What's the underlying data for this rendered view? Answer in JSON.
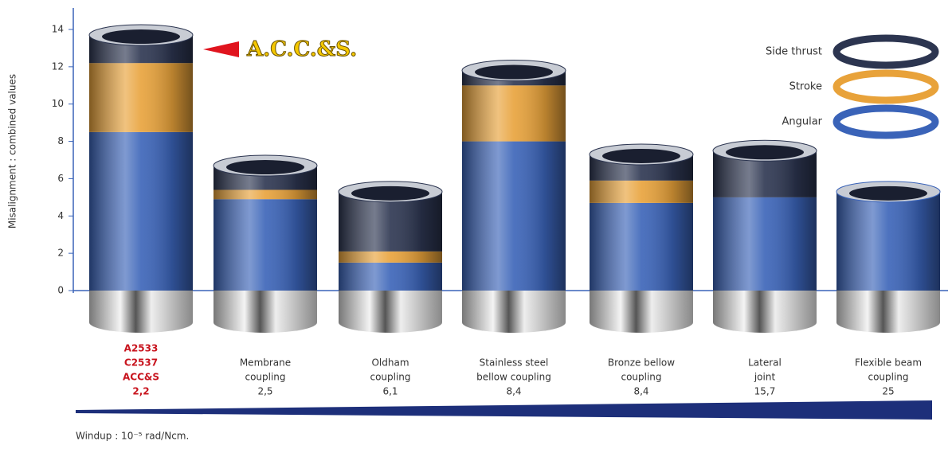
{
  "chart_data": {
    "type": "stacked_bar",
    "y_label": "Misalignment : combined values",
    "x_note": "Windup : 10⁻⁵ rad/Ncm.",
    "annotation": "A.C.C.&S.",
    "categories": [
      [
        "A2533",
        "C2537",
        "ACC&S"
      ],
      [
        "Membrane",
        "coupling"
      ],
      [
        "Oldham",
        "coupling"
      ],
      [
        "Stainless steel",
        "bellow coupling"
      ],
      [
        "Bronze bellow",
        "coupling"
      ],
      [
        "Lateral",
        "joint"
      ],
      [
        "Flexible beam",
        "coupling"
      ]
    ],
    "windup": [
      {
        "value": 2.2,
        "label": "2,2"
      },
      {
        "value": 2.5,
        "label": "2,5"
      },
      {
        "value": 6.1,
        "label": "6,1"
      },
      {
        "value": 8.4,
        "label": "8,4"
      },
      {
        "value": 8.4,
        "label": "8,4"
      },
      {
        "value": 15.7,
        "label": "15,7"
      },
      {
        "value": 25,
        "label": "25"
      }
    ],
    "series": [
      {
        "name": "Angular",
        "color": "#3a63b8",
        "values": [
          8.5,
          4.9,
          1.5,
          8.0,
          4.7,
          5.0,
          5.3
        ]
      },
      {
        "name": "Stroke",
        "color": "#e8a23a",
        "values": [
          3.7,
          0.5,
          0.6,
          3.0,
          1.2,
          0,
          0
        ]
      },
      {
        "name": "Side thrust",
        "color": "#2c3550",
        "values": [
          1.5,
          1.3,
          3.2,
          0.8,
          1.4,
          2.5,
          0
        ]
      }
    ],
    "ylim": [
      0,
      14
    ],
    "yticks": [
      0,
      2,
      4,
      6,
      8,
      10,
      12,
      14
    ],
    "legend": "top-right"
  }
}
